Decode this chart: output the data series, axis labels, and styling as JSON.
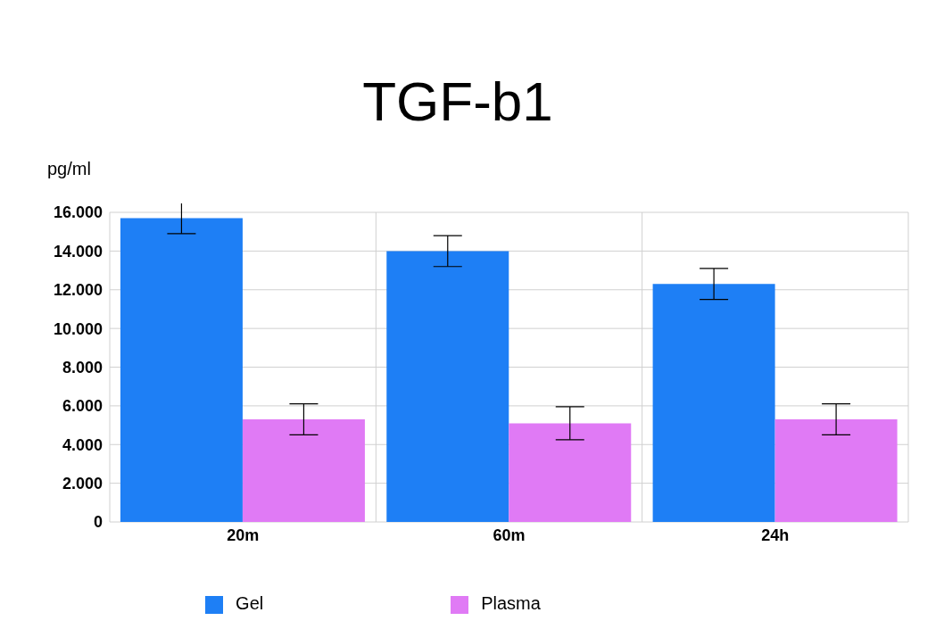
{
  "chart_data": {
    "type": "bar",
    "title": "TGF-b1",
    "ylabel": "pg/ml",
    "categories": [
      "20m",
      "60m",
      "24h"
    ],
    "series": [
      {
        "name": "Gel",
        "color": "#1e7ff5",
        "values": [
          15700,
          14000,
          12300
        ],
        "errors": [
          800,
          800,
          800
        ]
      },
      {
        "name": "Plasma",
        "color": "#e07af5",
        "values": [
          5300,
          5100,
          5300
        ],
        "errors": [
          800,
          850,
          800
        ]
      }
    ],
    "ylim": [
      0,
      16000
    ],
    "yticks": [
      0,
      {
        "value": 2000,
        "label": "2.000"
      },
      {
        "value": 4000,
        "label": "4.000"
      },
      {
        "value": 6000,
        "label": "6.000"
      },
      {
        "value": 8000,
        "label": "8.000"
      },
      {
        "value": 10000,
        "label": "10.000"
      },
      {
        "value": 12000,
        "label": "12.000"
      },
      {
        "value": 14000,
        "label": "14.000"
      },
      {
        "value": 16000,
        "label": "16.000"
      }
    ],
    "grid": true,
    "legend": "bottom"
  }
}
